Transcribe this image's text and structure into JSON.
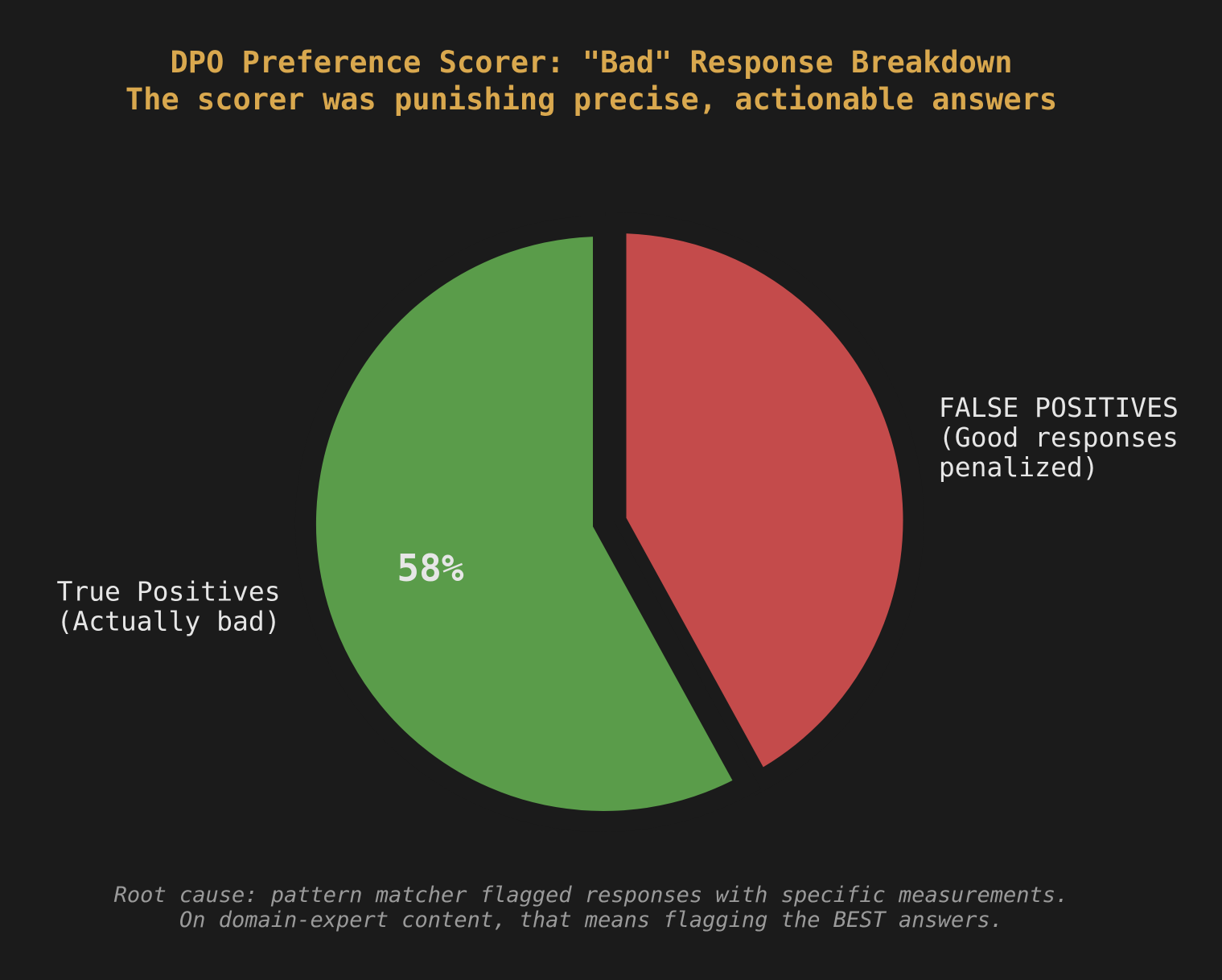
{
  "theme": {
    "background": "#1b1b1b",
    "title_color": "#d9a84e",
    "label_color": "#e6e6e6",
    "footnote_color": "#9a9a9a"
  },
  "chart_data": {
    "type": "pie",
    "title_lines": [
      "DPO Preference Scorer: \"Bad\" Response Breakdown",
      "The scorer was punishing precise, actionable answers"
    ],
    "start_angle_deg": 90,
    "direction": "clockwise",
    "slices": [
      {
        "label_lines": [
          "FALSE POSITIVES",
          "(Good responses",
          "penalized)"
        ],
        "value": 42,
        "pct_label": "",
        "color": "#c44b4b",
        "exploded": true
      },
      {
        "label_lines": [
          "True Positives",
          "(Actually bad)"
        ],
        "value": 58,
        "pct_label": "58%",
        "color": "#5a9c4a",
        "exploded": false
      }
    ],
    "footnote_lines": [
      "Root cause: pattern matcher flagged responses with specific measurements.",
      "On domain-expert content, that means flagging the BEST answers."
    ]
  }
}
